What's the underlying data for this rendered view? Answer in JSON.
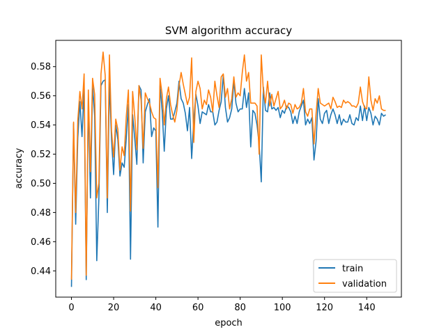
{
  "chart_data": {
    "type": "line",
    "title": "SVM algorithm accuracy",
    "xlabel": "epoch",
    "ylabel": "accuracy",
    "xlim": [
      -7.45,
      156.45
    ],
    "ylim": [
      0.422,
      0.598
    ],
    "xticks": [
      0,
      20,
      40,
      60,
      80,
      100,
      120,
      140
    ],
    "yticks": [
      0.44,
      0.46,
      0.48,
      0.5,
      0.52,
      0.54,
      0.56,
      0.58
    ],
    "ytick_labels": [
      "0.44",
      "0.46",
      "0.48",
      "0.50",
      "0.52",
      "0.54",
      "0.56",
      "0.58"
    ],
    "grid": false,
    "legend_position": "lower-right",
    "series": [
      {
        "name": "train",
        "color": "#1f77b4",
        "values": [
          0.429,
          0.541,
          0.472,
          0.531,
          0.556,
          0.532,
          0.565,
          0.434,
          0.558,
          0.49,
          0.567,
          0.546,
          0.447,
          0.49,
          0.567,
          0.57,
          0.571,
          0.48,
          0.569,
          0.53,
          0.506,
          0.54,
          0.53,
          0.505,
          0.514,
          0.511,
          0.531,
          0.554,
          0.448,
          0.547,
          0.531,
          0.513,
          0.567,
          0.564,
          0.514,
          0.549,
          0.554,
          0.558,
          0.532,
          0.538,
          0.536,
          0.47,
          0.567,
          0.55,
          0.522,
          0.551,
          0.56,
          0.544,
          0.544,
          0.549,
          0.555,
          0.57,
          0.558,
          0.555,
          0.548,
          0.536,
          0.552,
          0.517,
          0.543,
          0.561,
          0.553,
          0.541,
          0.549,
          0.548,
          0.547,
          0.554,
          0.549,
          0.549,
          0.54,
          0.542,
          0.55,
          0.556,
          0.574,
          0.552,
          0.542,
          0.545,
          0.551,
          0.57,
          0.555,
          0.549,
          0.551,
          0.551,
          0.565,
          0.552,
          0.562,
          0.525,
          0.55,
          0.548,
          0.54,
          0.527,
          0.501,
          0.566,
          0.55,
          0.549,
          0.562,
          0.551,
          0.552,
          0.55,
          0.552,
          0.545,
          0.55,
          0.548,
          0.553,
          0.552,
          0.549,
          0.541,
          0.546,
          0.541,
          0.549,
          0.553,
          0.557,
          0.54,
          0.544,
          0.541,
          0.545,
          0.516,
          0.529,
          0.558,
          0.544,
          0.541,
          0.548,
          0.55,
          0.541,
          0.547,
          0.551,
          0.547,
          0.541,
          0.547,
          0.54,
          0.544,
          0.542,
          0.542,
          0.547,
          0.541,
          0.54,
          0.545,
          0.543,
          0.553,
          0.543,
          0.553,
          0.543,
          0.552,
          0.548,
          0.54,
          0.546,
          0.544,
          0.54,
          0.548,
          0.546,
          0.547
        ]
      },
      {
        "name": "validation",
        "color": "#ff7f0e",
        "values": [
          0.434,
          0.542,
          0.48,
          0.543,
          0.563,
          0.551,
          0.575,
          0.437,
          0.564,
          0.508,
          0.572,
          0.561,
          0.49,
          0.5,
          0.575,
          0.59,
          0.574,
          0.49,
          0.588,
          0.536,
          0.518,
          0.544,
          0.537,
          0.509,
          0.525,
          0.519,
          0.546,
          0.564,
          0.481,
          0.563,
          0.546,
          0.523,
          0.567,
          0.557,
          0.524,
          0.562,
          0.558,
          0.555,
          0.549,
          0.545,
          0.544,
          0.497,
          0.572,
          0.561,
          0.54,
          0.558,
          0.566,
          0.554,
          0.547,
          0.542,
          0.55,
          0.567,
          0.576,
          0.568,
          0.561,
          0.554,
          0.559,
          0.586,
          0.528,
          0.563,
          0.57,
          0.565,
          0.551,
          0.557,
          0.554,
          0.564,
          0.559,
          0.549,
          0.57,
          0.56,
          0.552,
          0.573,
          0.575,
          0.559,
          0.565,
          0.551,
          0.558,
          0.573,
          0.559,
          0.562,
          0.56,
          0.576,
          0.588,
          0.57,
          0.576,
          0.555,
          0.555,
          0.555,
          0.553,
          0.52,
          0.588,
          0.563,
          0.555,
          0.57,
          0.553,
          0.561,
          0.553,
          0.558,
          0.563,
          0.551,
          0.553,
          0.557,
          0.551,
          0.555,
          0.554,
          0.548,
          0.554,
          0.551,
          0.552,
          0.555,
          0.565,
          0.549,
          0.546,
          0.551,
          0.551,
          0.527,
          0.548,
          0.565,
          0.555,
          0.554,
          0.553,
          0.554,
          0.555,
          0.551,
          0.559,
          0.556,
          0.552,
          0.553,
          0.552,
          0.557,
          0.555,
          0.556,
          0.555,
          0.553,
          0.553,
          0.552,
          0.555,
          0.566,
          0.556,
          0.552,
          0.551,
          0.573,
          0.557,
          0.55,
          0.558,
          0.555,
          0.56,
          0.551,
          0.55,
          0.55
        ]
      }
    ]
  }
}
